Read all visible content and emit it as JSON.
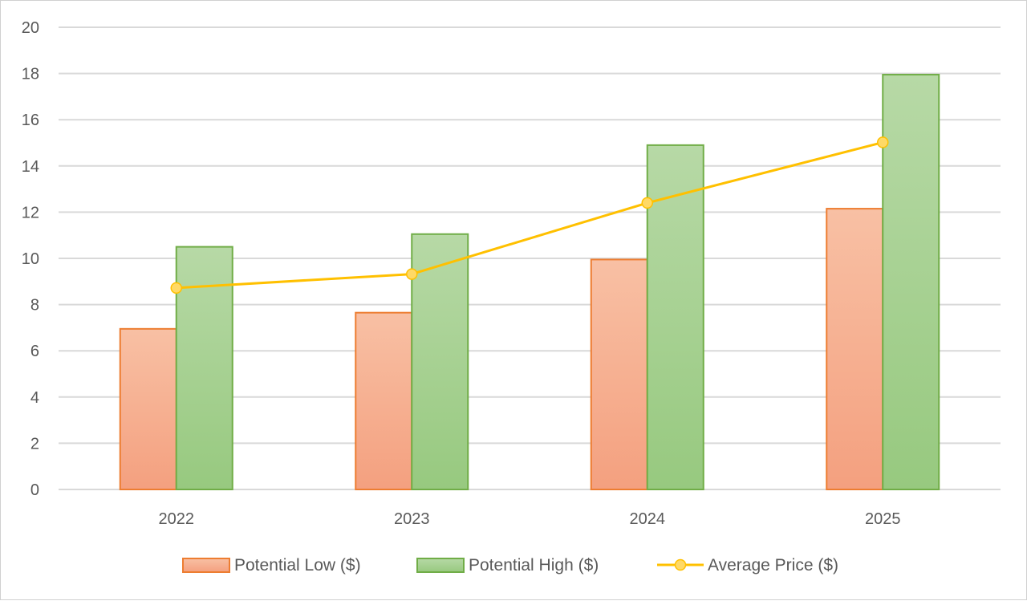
{
  "chart_data": {
    "type": "bar",
    "categories": [
      "2022",
      "2023",
      "2024",
      "2025"
    ],
    "series": [
      {
        "name": "Potential Low ($)",
        "kind": "bar",
        "values": [
          6.95,
          7.65,
          9.95,
          12.15
        ],
        "color": "#ed7d31",
        "fill_top": "#f8c0a4",
        "fill_bottom": "#f4a07f"
      },
      {
        "name": "Potential High ($)",
        "kind": "bar",
        "values": [
          10.5,
          11.05,
          14.9,
          17.95
        ],
        "color": "#70ad47",
        "fill_top": "#b7d9a6",
        "fill_bottom": "#97c97f"
      },
      {
        "name": "Average Price ($)",
        "kind": "line",
        "values": [
          8.72,
          9.32,
          12.4,
          15.02
        ],
        "color": "#ffc000"
      }
    ],
    "ylim": [
      0,
      20
    ],
    "yticks": [
      "0",
      "2",
      "4",
      "6",
      "8",
      "10",
      "12",
      "14",
      "16",
      "18",
      "20"
    ],
    "grid": true,
    "legend_position": "bottom",
    "title": "",
    "xlabel": "",
    "ylabel": ""
  }
}
